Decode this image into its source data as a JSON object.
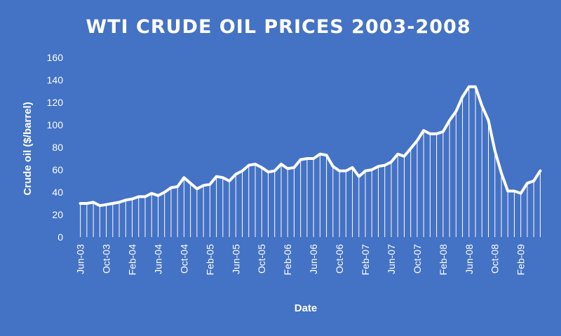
{
  "chart_data": {
    "type": "line",
    "title": "WTI CRUDE OIL PRICES 2003-2008",
    "xlabel": "Date",
    "ylabel": "Crude oil ($/barrel)",
    "ylim": [
      0,
      160
    ],
    "yticks": [
      0,
      20,
      40,
      60,
      80,
      100,
      120,
      140,
      160
    ],
    "grid": false,
    "legend": "none",
    "x": [
      "Jun-03",
      "Jul-03",
      "Aug-03",
      "Sep-03",
      "Oct-03",
      "Nov-03",
      "Dec-03",
      "Jan-04",
      "Feb-04",
      "Mar-04",
      "Apr-04",
      "May-04",
      "Jun-04",
      "Jul-04",
      "Aug-04",
      "Sep-04",
      "Oct-04",
      "Nov-04",
      "Dec-04",
      "Jan-05",
      "Feb-05",
      "Mar-05",
      "Apr-05",
      "May-05",
      "Jun-05",
      "Jul-05",
      "Aug-05",
      "Sep-05",
      "Oct-05",
      "Nov-05",
      "Dec-05",
      "Jan-06",
      "Feb-06",
      "Mar-06",
      "Apr-06",
      "May-06",
      "Jun-06",
      "Jul-06",
      "Aug-06",
      "Sep-06",
      "Oct-06",
      "Nov-06",
      "Dec-06",
      "Jan-07",
      "Feb-07",
      "Mar-07",
      "Apr-07",
      "May-07",
      "Jun-07",
      "Jul-07",
      "Aug-07",
      "Sep-07",
      "Oct-07",
      "Nov-07",
      "Dec-07",
      "Jan-08",
      "Feb-08",
      "Mar-08",
      "Apr-08",
      "May-08",
      "Jun-08",
      "Jul-08",
      "Aug-08",
      "Sep-08",
      "Oct-08",
      "Nov-08",
      "Dec-08",
      "Jan-09",
      "Feb-09",
      "Mar-09",
      "Apr-09",
      "May-09"
    ],
    "xtick_labels": [
      "Jun-03",
      "Oct-03",
      "Feb-04",
      "Jun-04",
      "Oct-04",
      "Feb-05",
      "Jun-05",
      "Oct-05",
      "Feb-06",
      "Jun-06",
      "Oct-06",
      "Feb-07",
      "Jun-07",
      "Oct-07",
      "Feb-08",
      "Jun-08",
      "Oct-08",
      "Feb-09"
    ],
    "values": [
      30,
      30,
      31,
      28,
      29,
      30,
      31,
      33,
      34,
      36,
      36,
      39,
      37,
      40,
      44,
      45,
      53,
      48,
      43,
      46,
      47,
      54,
      53,
      50,
      56,
      59,
      64,
      65,
      62,
      58,
      59,
      65,
      61,
      62,
      69,
      70,
      70,
      74,
      73,
      63,
      59,
      59,
      62,
      54,
      59,
      60,
      63,
      64,
      67,
      74,
      72,
      79,
      86,
      95,
      92,
      92,
      94,
      104,
      112,
      125,
      134,
      134,
      117,
      104,
      77,
      57,
      41,
      41,
      39,
      48,
      50,
      59
    ]
  }
}
